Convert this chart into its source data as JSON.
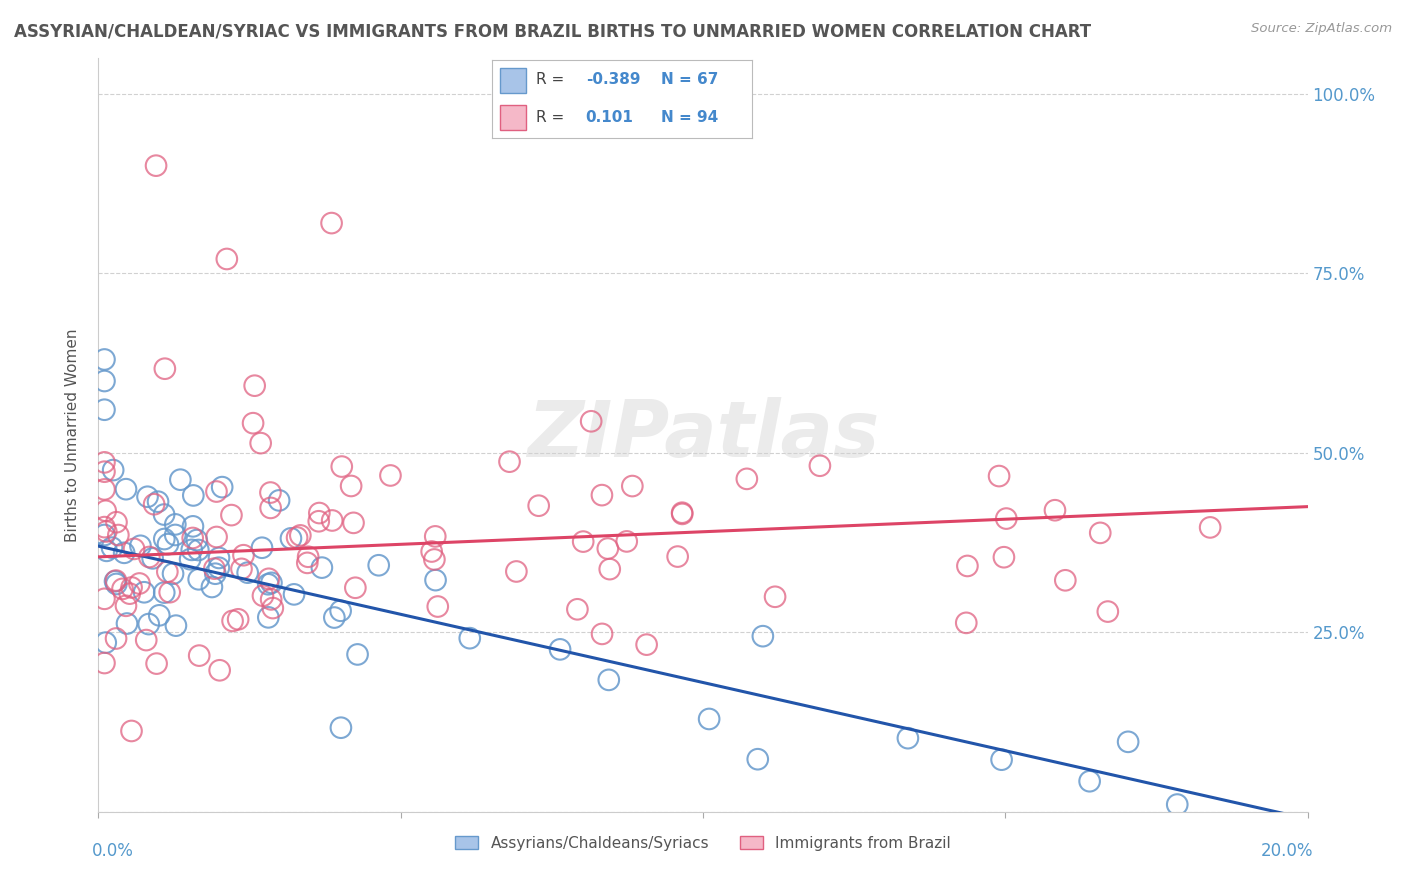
{
  "title": "ASSYRIAN/CHALDEAN/SYRIAC VS IMMIGRANTS FROM BRAZIL BIRTHS TO UNMARRIED WOMEN CORRELATION CHART",
  "source": "Source: ZipAtlas.com",
  "ylabel": "Births to Unmarried Women",
  "xlim": [
    0.0,
    0.2
  ],
  "ylim": [
    0.0,
    1.05
  ],
  "series1": {
    "name": "Assyrians/Chaldeans/Syriacs",
    "color": "#a8c4e8",
    "edge_color": "#6699cc",
    "line_color": "#2255aa",
    "R": -0.389,
    "N": 67,
    "trend_x0": 0.0,
    "trend_y0": 0.37,
    "trend_x1": 0.2,
    "trend_y1": -0.01
  },
  "series2": {
    "name": "Immigrants from Brazil",
    "color": "#f5b8c8",
    "edge_color": "#e06080",
    "line_color": "#dd4466",
    "R": 0.101,
    "N": 94,
    "trend_x0": 0.0,
    "trend_y0": 0.355,
    "trend_x1": 0.2,
    "trend_y1": 0.425
  },
  "yticks": [
    0.0,
    0.25,
    0.5,
    0.75,
    1.0
  ],
  "ytick_labels_right": [
    "",
    "25.0%",
    "50.0%",
    "75.0%",
    "100.0%"
  ],
  "watermark_text": "ZIPatlas",
  "background_color": "#ffffff",
  "grid_color": "#cccccc",
  "title_color": "#555555",
  "axis_label_color": "#5599cc",
  "legend_color": "#4488cc"
}
